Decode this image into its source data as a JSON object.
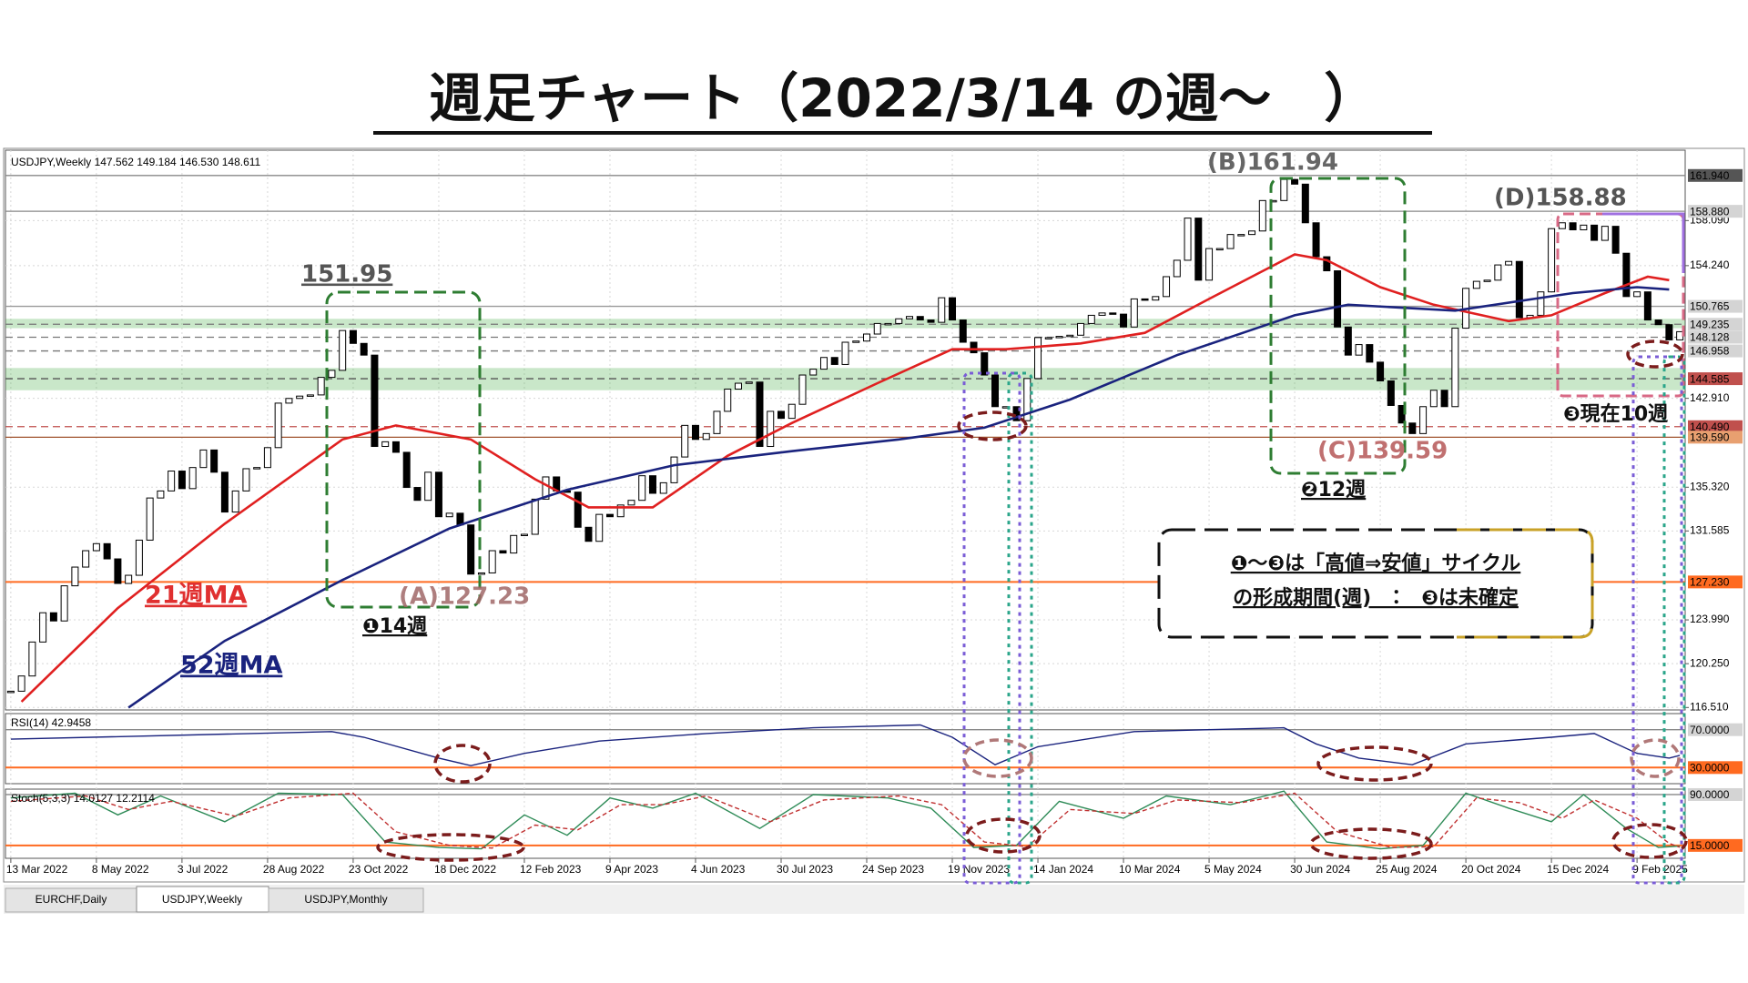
{
  "title": "週足チャート（2022/3/14 の週〜　）",
  "tabs": [
    "EURCHF,Daily",
    "USDJPY,Weekly",
    "USDJPY,Monthly"
  ],
  "annotations": {
    "peaks": [
      "151.95",
      "(A)127.23",
      "(B)161.94",
      "(C)139.59",
      "(D)158.88"
    ],
    "cycles": [
      "❶14週",
      "❷12週",
      "❸現在10週"
    ],
    "note": [
      "❶〜❸は「高値⇒安値」サイクル",
      "の形成期間(週)　：　❸は未確定"
    ]
  },
  "chart_data": [
    {
      "type": "candlestick",
      "title": "USDJPY,Weekly  147.562 149.184 146.530 148.611",
      "categories": [
        "13 Mar 2022",
        null,
        null,
        null,
        null,
        null,
        null,
        null,
        "8 May 2022",
        null,
        null,
        null,
        null,
        null,
        null,
        null,
        "3 Jul 2022",
        null,
        null,
        null,
        null,
        null,
        null,
        null,
        "28 Aug 2022",
        null,
        null,
        null,
        null,
        null,
        null,
        null,
        "23 Oct 2022",
        null,
        null,
        null,
        null,
        null,
        null,
        null,
        "18 Dec 2022",
        null,
        null,
        null,
        null,
        null,
        null,
        null,
        "12 Feb 2023",
        null,
        null,
        null,
        null,
        null,
        null,
        null,
        "9 Apr 2023",
        null,
        null,
        null,
        null,
        null,
        null,
        null,
        "4 Jun 2023",
        null,
        null,
        null,
        null,
        null,
        null,
        null,
        "30 Jul 2023",
        null,
        null,
        null,
        null,
        null,
        null,
        null,
        "24 Sep 2023",
        null,
        null,
        null,
        null,
        null,
        null,
        null,
        "19 Nov 2023",
        null,
        null,
        null,
        null,
        null,
        null,
        null,
        "14 Jan 2024",
        null,
        null,
        null,
        null,
        null,
        null,
        null,
        "10 Mar 2024",
        null,
        null,
        null,
        null,
        null,
        null,
        null,
        "5 May 2024",
        null,
        null,
        null,
        null,
        null,
        null,
        null,
        "30 Jun 2024",
        null,
        null,
        null,
        null,
        null,
        null,
        null,
        "25 Aug 2024",
        null,
        null,
        null,
        null,
        null,
        null,
        null,
        "20 Oct 2024",
        null,
        null,
        null,
        null,
        null,
        null,
        null,
        "15 Dec 2024",
        null,
        null,
        null,
        null,
        null,
        null,
        null,
        "9 Feb 2025",
        null,
        null,
        null,
        null
      ],
      "close": [
        117.9,
        119.2,
        122.1,
        124.6,
        123.9,
        126.9,
        128.5,
        129.9,
        130.5,
        129.2,
        127.1,
        127.8,
        130.8,
        134.4,
        135.0,
        136.7,
        135.2,
        137.0,
        138.5,
        136.6,
        133.2,
        135.0,
        136.9,
        137.0,
        138.7,
        142.5,
        142.9,
        143.1,
        143.2,
        144.7,
        145.3,
        148.7,
        147.6,
        146.6,
        138.8,
        139.2,
        138.3,
        135.3,
        134.2,
        136.6,
        132.8,
        133.1,
        132.1,
        127.9,
        128.0,
        129.9,
        129.7,
        131.2,
        131.3,
        134.3,
        136.2,
        135.0,
        134.9,
        131.9,
        130.7,
        133.0,
        132.8,
        133.8,
        134.2,
        136.3,
        134.8,
        135.7,
        137.9,
        140.6,
        139.4,
        139.9,
        141.8,
        143.7,
        144.2,
        144.3,
        138.8,
        141.8,
        141.2,
        142.4,
        144.9,
        145.4,
        146.4,
        145.8,
        147.7,
        147.8,
        148.4,
        149.3,
        149.3,
        149.7,
        149.9,
        149.6,
        149.4,
        151.5,
        149.6,
        147.7,
        146.8,
        144.9,
        142.2,
        142.2,
        141.0,
        144.6,
        148.1,
        148.1,
        148.2,
        148.3,
        149.3,
        150.0,
        150.2,
        150.1,
        149.0,
        151.4,
        151.3,
        151.6,
        153.3,
        154.7,
        158.3,
        153.0,
        155.7,
        155.7,
        156.9,
        156.9,
        157.2,
        159.8,
        159.8,
        161.6,
        161.2,
        157.9,
        155.0,
        153.8,
        149.0,
        146.6,
        147.5,
        146.0,
        144.4,
        142.3,
        140.8,
        139.9,
        142.2,
        143.6,
        142.2,
        148.9,
        152.3,
        152.9,
        153.0,
        154.3,
        154.6,
        149.8,
        150.0,
        152.0,
        157.4,
        157.9,
        157.3,
        157.7,
        156.4,
        157.6,
        155.3,
        151.6,
        152.0,
        149.6,
        149.2,
        147.9,
        148.6
      ],
      "color_up": "#ffffff",
      "color_down": "#000000",
      "ylim": [
        116.3,
        164.1
      ],
      "yticks": [
        {
          "value": 158.09,
          "label": "158.090"
        },
        {
          "value": 154.24,
          "label": "154.240"
        },
        {
          "value": 142.91,
          "label": "142.910"
        },
        {
          "value": 135.32,
          "label": "135.320"
        },
        {
          "value": 131.585,
          "label": "131.585"
        },
        {
          "value": 123.99,
          "label": "123.990"
        },
        {
          "value": 120.25,
          "label": "120.250"
        },
        {
          "value": 116.51,
          "label": "116.510"
        }
      ],
      "grid": true,
      "levels": [
        {
          "value": 161.94,
          "label": "161.940",
          "color": "#888888",
          "dash": false,
          "label_bg": "#555555",
          "label_color": "#ffffff"
        },
        {
          "value": 158.88,
          "label": "158.880",
          "color": "#888888",
          "dash": false,
          "label_bg": "#d4d4d4",
          "label_color": "#000000"
        },
        {
          "value": 150.765,
          "label": "150.765",
          "color": "#999999",
          "dash": false,
          "label_bg": "#d4d4d4",
          "label_color": "#000000"
        },
        {
          "value": 149.235,
          "label": "149.235",
          "color": "#777777",
          "dash": true,
          "label_bg": "#d4d4d4",
          "label_color": "#000000",
          "band": [
            149.7,
            148.9
          ]
        },
        {
          "value": 148.128,
          "label": "148.128",
          "color": "#777777",
          "dash": true,
          "label_bg": "#d4d4d4",
          "label_color": "#000000"
        },
        {
          "value": 146.958,
          "label": "146.958",
          "color": "#777777",
          "dash": true,
          "label_bg": "#d4d4d4",
          "label_color": "#000000"
        },
        {
          "value": 144.585,
          "label": "144.585",
          "color": "#555555",
          "dash": true,
          "label_bg": "#c0504d",
          "label_color": "#ffffff",
          "band": [
            145.5,
            143.6
          ]
        },
        {
          "value": 140.49,
          "label": "140.490",
          "color": "#c0504d",
          "dash": true,
          "label_bg": "#c0504d",
          "label_color": "#ffffff"
        },
        {
          "value": 139.59,
          "label": "139.590",
          "color": "#a0522d",
          "dash": false,
          "label_bg": "#e8a070",
          "label_color": "#000000"
        },
        {
          "value": 127.23,
          "label": "127.230",
          "color": "#ff6a20",
          "dash": false,
          "label_bg": "#ff6a20",
          "label_color": "#ffffff"
        }
      ],
      "ma": [
        {
          "name": "21週MA",
          "color": "#e02020",
          "x": [
            1,
            10,
            20,
            31,
            36,
            43,
            49,
            54,
            60,
            67,
            73,
            81,
            88,
            93,
            100,
            106,
            112,
            120,
            123,
            128,
            133,
            140,
            144,
            149,
            153,
            155
          ],
          "values": [
            117.0,
            125.0,
            132.2,
            139.4,
            140.6,
            139.4,
            136.0,
            133.6,
            133.6,
            138.0,
            140.8,
            144.2,
            147.1,
            147.1,
            147.6,
            148.5,
            151.4,
            155.2,
            154.7,
            152.4,
            150.9,
            149.5,
            150.0,
            151.9,
            153.3,
            153.0
          ]
        },
        {
          "name": "52週MA",
          "color": "#1a237e",
          "x": [
            11,
            20,
            31,
            41,
            52,
            62,
            73,
            83,
            91,
            99,
            109,
            120,
            125,
            135,
            146,
            152,
            155
          ],
          "values": [
            116.5,
            122.2,
            127.4,
            131.8,
            135.1,
            137.2,
            138.4,
            139.4,
            140.4,
            142.8,
            146.6,
            150.0,
            150.9,
            150.4,
            151.9,
            152.4,
            152.2
          ]
        }
      ]
    },
    {
      "type": "line",
      "title": "RSI(14) 42.9458",
      "ylim": [
        13,
        87
      ],
      "levels": [
        {
          "value": 70,
          "label": "70.0000",
          "color": "#888888",
          "label_bg": "#d4d4d4",
          "label_color": "#000000"
        },
        {
          "value": 30,
          "label": "30.0000",
          "color": "#ff6a20",
          "label_bg": "#ff6a20",
          "label_color": "#ffffff"
        }
      ],
      "series": [
        {
          "color": "#1a237e",
          "dash": false,
          "x": [
            0,
            30,
            33,
            40,
            43,
            48,
            55,
            65,
            75,
            85,
            88,
            92,
            96,
            105,
            112,
            119,
            122,
            126,
            131,
            136,
            144,
            148,
            152,
            155,
            156
          ],
          "values": [
            60,
            68,
            62,
            40,
            32,
            45,
            58,
            66,
            72,
            75,
            62,
            33,
            52,
            68,
            70,
            72,
            55,
            40,
            33,
            55,
            62,
            66,
            45,
            40,
            42.9
          ]
        }
      ]
    },
    {
      "type": "line",
      "title": "Stoch(5,3,3) 14.0127 12.2114",
      "ylim": [
        -4,
        98
      ],
      "levels": [
        {
          "value": 90,
          "label": "90.0000",
          "color": "#888888",
          "label_bg": "#d4d4d4",
          "label_color": "#000000"
        },
        {
          "value": 15,
          "label": "15.0000",
          "color": "#ff6a20",
          "label_bg": "#ff6a20",
          "label_color": "#ffffff"
        }
      ],
      "series": [
        {
          "color": "#2e8b57",
          "dash": false,
          "x": [
            0,
            6,
            10,
            14,
            20,
            25,
            31,
            35,
            40,
            44,
            48,
            52,
            56,
            60,
            64,
            70,
            75,
            82,
            86,
            90,
            94,
            98,
            104,
            108,
            114,
            119,
            123,
            128,
            132,
            136,
            140,
            144,
            147,
            151,
            154,
            156
          ],
          "values": [
            85,
            92,
            60,
            88,
            50,
            92,
            90,
            20,
            12,
            10,
            60,
            30,
            85,
            70,
            92,
            40,
            90,
            85,
            70,
            12,
            15,
            80,
            55,
            88,
            75,
            95,
            20,
            10,
            15,
            92,
            70,
            50,
            90,
            40,
            12,
            14.0
          ]
        },
        {
          "color": "#c03030",
          "dash": true,
          "x": [
            0,
            7,
            11,
            15,
            21,
            26,
            32,
            36,
            41,
            45,
            49,
            53,
            57,
            61,
            65,
            71,
            76,
            83,
            87,
            91,
            95,
            99,
            105,
            109,
            115,
            120,
            124,
            129,
            133,
            137,
            141,
            145,
            148,
            152,
            155,
            156
          ],
          "values": [
            80,
            88,
            68,
            80,
            58,
            85,
            92,
            35,
            15,
            11,
            45,
            38,
            75,
            75,
            88,
            50,
            82,
            88,
            75,
            20,
            13,
            68,
            62,
            82,
            78,
            92,
            35,
            12,
            13,
            85,
            78,
            55,
            82,
            55,
            18,
            12.2
          ]
        }
      ]
    }
  ]
}
